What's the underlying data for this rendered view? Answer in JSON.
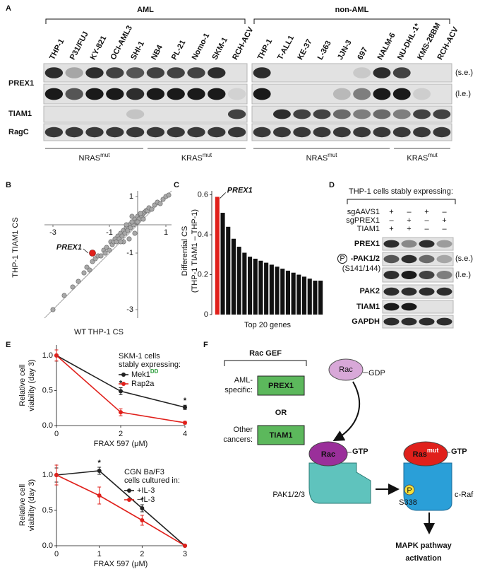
{
  "panel_labels": [
    "A",
    "B",
    "C",
    "D",
    "E",
    "F"
  ],
  "panel_a": {
    "groups": [
      {
        "title": "AML",
        "title_color": "#e0201b",
        "lanes": [
          {
            "label": "THP-1",
            "color": "#e0201b"
          },
          {
            "label": "P31/FUJ",
            "color": "#e0201b"
          },
          {
            "label": "KY-821",
            "color": "#e0201b"
          },
          {
            "label": "OCI-AML3",
            "color": "#e0201b"
          },
          {
            "label": "SHI-1",
            "color": "#e0201b"
          },
          {
            "label": "NB4",
            "color": "#e0201b"
          },
          {
            "label": "PL-21",
            "color": "#e0201b"
          },
          {
            "label": "Nomo-1",
            "color": "#e0201b"
          },
          {
            "label": "SKM-1",
            "color": "#e0201b"
          },
          {
            "label": "RCH-ACV",
            "color": "#111111"
          }
        ],
        "genotypes": [
          {
            "gene": "NRAS",
            "sup": "mut"
          },
          {
            "gene": "KRAS",
            "sup": "mut"
          }
        ]
      },
      {
        "title": "non-AML",
        "title_color": "#111111",
        "lanes": [
          {
            "label": "THP-1",
            "color": "#e0201b"
          },
          {
            "label": "T-ALL1",
            "color": "#111111"
          },
          {
            "label": "KE-37",
            "color": "#111111"
          },
          {
            "label": "L-363",
            "color": "#111111"
          },
          {
            "label": "JJN-3",
            "color": "#111111"
          },
          {
            "label": "697",
            "color": "#111111"
          },
          {
            "label": "NALM-6",
            "color": "#111111"
          },
          {
            "label": "NU-DHL-1*",
            "color": "#111111"
          },
          {
            "label": "KMS-28BM",
            "color": "#111111"
          },
          {
            "label": "RCH-ACV",
            "color": "#111111"
          }
        ],
        "genotypes": [
          {
            "gene": "NRAS",
            "sup": "mut"
          },
          {
            "gene": "KRAS",
            "sup": "mut"
          }
        ]
      }
    ],
    "row_labels": [
      "PREX1",
      "TIAM1",
      "RagC"
    ],
    "exposures": [
      "(s.e.)",
      "(l.e.)"
    ]
  },
  "chart_data": [
    {
      "type": "scatter",
      "x_label": "WT THP-1 CS",
      "y_label": "THP-1 TIAM1 CS",
      "color": "#a8a8a8",
      "x": [
        -3.0,
        -2.6,
        -2.3,
        -2.1,
        -1.9,
        -1.8,
        -1.7,
        -1.6,
        -1.5,
        -1.4,
        -1.3,
        -1.2,
        -1.15,
        -1.1,
        -1.0,
        -0.95,
        -0.9,
        -0.85,
        -0.8,
        -0.75,
        -0.7,
        -0.65,
        -0.6,
        -0.55,
        -0.5,
        -0.45,
        -0.4,
        -0.35,
        -0.3,
        -0.25,
        -0.2,
        -0.15,
        -0.1,
        -0.05,
        0,
        0.05,
        0.1,
        0.15,
        0.2,
        0.25,
        0.3,
        0.35,
        0.4,
        0.5,
        0.6,
        0.7,
        0.8,
        0.9,
        1.0,
        1.1,
        -0.5,
        -0.3,
        -0.2,
        -0.1,
        0,
        0.1,
        -0.4,
        -0.6,
        -0.2,
        0.2
      ],
      "y": [
        -3.0,
        -2.5,
        -2.2,
        -2.0,
        -1.7,
        -1.5,
        -1.6,
        -1.3,
        -1.2,
        -1.1,
        -1.1,
        -0.9,
        -1.0,
        -0.8,
        -0.9,
        -0.6,
        -0.7,
        -0.6,
        -0.5,
        -0.6,
        -0.4,
        -0.5,
        -0.3,
        -0.4,
        -0.2,
        -0.3,
        -0.1,
        -0.2,
        0,
        -0.1,
        0.1,
        0,
        0.2,
        0.1,
        0.3,
        0.2,
        0.35,
        0.3,
        0.4,
        0.45,
        0.5,
        0.5,
        0.6,
        0.55,
        0.7,
        0.8,
        0.75,
        0.9,
        1.0,
        1.05,
        -0.6,
        -0.5,
        0.1,
        -0.3,
        0.1,
        0.4,
        0.0,
        -0.6,
        0.3,
        0.2
      ],
      "highlight": {
        "label": "PREX1",
        "x": -1.6,
        "y": -1.0,
        "color": "#e0201b"
      },
      "xlim": [
        -3.3,
        1.2
      ],
      "ylim": [
        -3.3,
        1.2
      ],
      "xticks": [
        -3,
        -1,
        1
      ],
      "yticks": [
        -3,
        -1,
        1
      ],
      "diagonal": true
    },
    {
      "type": "bar",
      "y_label": [
        "Differential CS",
        "(THP-1 TIAM1 – THP-1)"
      ],
      "x_label": "Top 20 genes",
      "values": [
        0.59,
        0.51,
        0.44,
        0.38,
        0.34,
        0.31,
        0.29,
        0.28,
        0.27,
        0.26,
        0.25,
        0.24,
        0.23,
        0.22,
        0.21,
        0.2,
        0.19,
        0.18,
        0.17,
        0.17
      ],
      "color": "#111111",
      "highlight_color": "#e0201b",
      "highlight_label": "PREX1",
      "ylim": [
        0,
        0.62
      ],
      "yticks": [
        0,
        0.2,
        0.4,
        0.6
      ]
    },
    {
      "type": "line",
      "x_label": "FRAX 597 (μM)",
      "y_label": [
        "Relative cell",
        "viability (day 3)"
      ],
      "legend_title": [
        "SKM-1 cells",
        "stably expressing:"
      ],
      "x": [
        0,
        2,
        4
      ],
      "series": [
        {
          "name": "Mek1",
          "name_sup": "DD",
          "sup_color": "#2a9d3a",
          "color": "#222222",
          "values": [
            1.0,
            0.49,
            0.26
          ],
          "errors": [
            0.08,
            0.05,
            0.03
          ]
        },
        {
          "name": "Rap2a",
          "color": "#e0201b",
          "values": [
            1.0,
            0.19,
            0.04
          ],
          "errors": [
            0.08,
            0.05,
            0.02
          ]
        }
      ],
      "annotations": [
        {
          "x": 2,
          "text": "*"
        },
        {
          "x": 4,
          "text": "*"
        }
      ],
      "xlim": [
        0,
        4
      ],
      "ylim": [
        0,
        1.15
      ],
      "xticks": [
        0,
        2,
        4
      ],
      "yticks": [
        {
          "value": 0,
          "label": "0.0"
        },
        {
          "value": 0.5,
          "label": "0.5"
        },
        {
          "value": 1,
          "label": "1.0"
        }
      ]
    },
    {
      "type": "line",
      "x_label": "FRAX 597 (μM)",
      "y_label": [
        "Relative cell",
        "viability (day 3)"
      ],
      "legend_title": [
        "CGN Ba/F3",
        "cells cultured in:"
      ],
      "x": [
        0,
        1,
        2,
        3
      ],
      "series": [
        {
          "name": "+IL-3",
          "color": "#222222",
          "values": [
            1.0,
            1.06,
            0.53,
            0.0
          ],
          "errors": [
            0.1,
            0.05,
            0.05,
            0
          ]
        },
        {
          "name": "−IL-3",
          "color": "#e0201b",
          "values": [
            1.0,
            0.71,
            0.36,
            0.0
          ],
          "errors": [
            0.14,
            0.12,
            0.07,
            0
          ]
        }
      ],
      "annotations": [
        {
          "x": 1,
          "text": "*"
        },
        {
          "x": 2,
          "text": "*"
        }
      ],
      "xlim": [
        0,
        3
      ],
      "ylim": [
        0,
        1.15
      ],
      "xticks": [
        0,
        1,
        2,
        3
      ],
      "yticks": [
        {
          "value": 0,
          "label": "0.0"
        },
        {
          "value": 0.5,
          "label": "0.5"
        },
        {
          "value": 1,
          "label": "1.0"
        }
      ]
    }
  ],
  "panel_d": {
    "header": "THP-1 cells stably expressing:",
    "conditions": [
      {
        "label": "sgAAVS1",
        "signs": [
          "+",
          "–",
          "+",
          "–"
        ]
      },
      {
        "label": "sgPREX1",
        "signs": [
          "–",
          "+",
          "–",
          "+"
        ]
      },
      {
        "label": "TIAM1",
        "signs": [
          "+",
          "+",
          "–",
          "–"
        ]
      }
    ],
    "rows": {
      "prex1": "PREX1",
      "phospho": "P",
      "ppak": "-PAK1/2",
      "site": "(S141/144)",
      "pak2": "PAK2",
      "tiam1": "TIAM1",
      "gapdh": "GAPDH"
    },
    "exposures": [
      "(s.e.)",
      "(l.e.)"
    ]
  },
  "panel_f": {
    "gef_title": "Rac GEF",
    "aml": [
      "AML-",
      "specific:"
    ],
    "prex1": "PREX1",
    "or": "OR",
    "other": [
      "Other",
      "cancers:"
    ],
    "tiam1": "TIAM1",
    "rac_gdp": {
      "protein": "Rac",
      "nucleotide": "GDP"
    },
    "rac_gtp": {
      "protein": "Rac",
      "nucleotide": "GTP"
    },
    "ras": {
      "protein": "Ras",
      "sup": "mut",
      "nucleotide": "GTP"
    },
    "pak": "PAK1/2/3",
    "phospho": "P",
    "site": "S338",
    "raf": "c-Raf",
    "output": [
      "MAPK pathway",
      "activation"
    ]
  }
}
